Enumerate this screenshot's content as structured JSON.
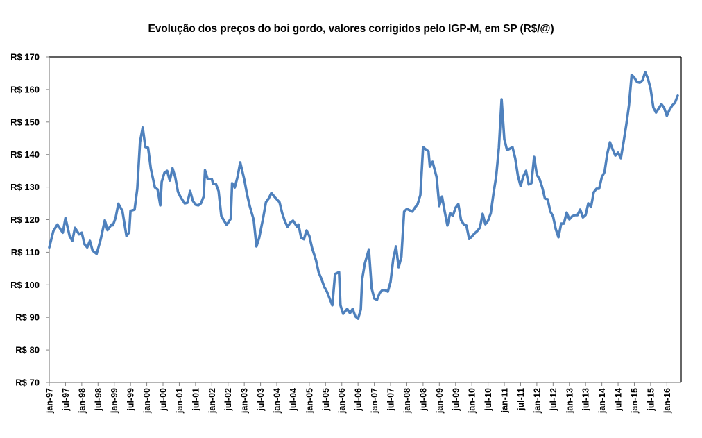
{
  "chart_data": {
    "type": "line",
    "title": "Evolução dos preços do boi gordo, valores corrigidos pelo IGP-M, em SP (R$/@)",
    "xlabel": "",
    "ylabel": "",
    "ylim": [
      70,
      170
    ],
    "grid": false,
    "legend": "none",
    "y_ticks": [
      70,
      80,
      90,
      100,
      110,
      120,
      130,
      140,
      150,
      160,
      170
    ],
    "y_tick_labels": [
      "R$ 70",
      "R$ 80",
      "R$ 90",
      "R$ 100",
      "R$ 110",
      "R$ 120",
      "R$ 130",
      "R$ 140",
      "R$ 150",
      "R$ 160",
      "R$ 170"
    ],
    "x_tick_labels": [
      "jan-97",
      "jul-97",
      "jan-98",
      "jul-98",
      "jan-99",
      "jul-99",
      "jan-00",
      "jul-00",
      "jan-01",
      "jul-01",
      "jan-02",
      "jul-02",
      "jan-03",
      "jul-03",
      "jan-04",
      "jul-04",
      "jan-05",
      "jul-05",
      "jan-06",
      "jul-06",
      "jan-07",
      "jul-07",
      "jan-08",
      "jul-08",
      "jan-09",
      "jul-09",
      "jan-10",
      "jul-10",
      "jan-11",
      "jul-11",
      "jan-12",
      "jul-12",
      "jan-13",
      "jul-13",
      "jan-14",
      "jul-14",
      "jan-15",
      "jul-15",
      "jan-16"
    ],
    "x_start": "jan-97",
    "x_unit": "month",
    "line_color": "#4F81BD",
    "series": [
      {
        "name": "Preço do boi gordo (R$/@)",
        "months_from_jan97": [
          0,
          1.5,
          3,
          5,
          6,
          7.5,
          8.5,
          9.5,
          11,
          12,
          13,
          14,
          15,
          16,
          17.5,
          19,
          20.5,
          21.5,
          23,
          23.5,
          24.5,
          25.5,
          27,
          28.5,
          29.5,
          30,
          31.5,
          32.5,
          33.5,
          34.5,
          35.5,
          36.5,
          37.5,
          39,
          40,
          41,
          41.5,
          42.5,
          43.5,
          44.5,
          45.5,
          46.5,
          47.5,
          48.5,
          50,
          51,
          52,
          53,
          54,
          55,
          56,
          57,
          57.5,
          58.5,
          60,
          60.5,
          61.5,
          62.5,
          63.5,
          64.5,
          65.5,
          67,
          67.5,
          68.5,
          69.5,
          70.5,
          72,
          73,
          74,
          75.5,
          76.5,
          77.5,
          79,
          80,
          81,
          82,
          83.5,
          85,
          86,
          87,
          88,
          89,
          90,
          91.5,
          92,
          93,
          94,
          95,
          96,
          97,
          98.5,
          99.5,
          100.5,
          101.5,
          102.5,
          103.5,
          104.5,
          105.5,
          107,
          107.5,
          108.5,
          110,
          111,
          112,
          113,
          114,
          115,
          115.5,
          116.5,
          118,
          119,
          120,
          121,
          122,
          123,
          124,
          125,
          126,
          127,
          128,
          129,
          130,
          131,
          132,
          133,
          134,
          135,
          136,
          137,
          138,
          139,
          140,
          140.5,
          141.5,
          143,
          144,
          145,
          146,
          147,
          148,
          149,
          150,
          151,
          152,
          153,
          154,
          155,
          156,
          157,
          158,
          159,
          160,
          161,
          162,
          163,
          164,
          165,
          166,
          167,
          168,
          169,
          170,
          171,
          172,
          173,
          174,
          175,
          176,
          177,
          178,
          179,
          180,
          181,
          182,
          183,
          184,
          185,
          186,
          187,
          188,
          189,
          190,
          191,
          192,
          193,
          194,
          195,
          196,
          197,
          198,
          199,
          200,
          201,
          202,
          203,
          204,
          205,
          206,
          207,
          208,
          209,
          210,
          211,
          212,
          213,
          214,
          215,
          216,
          217,
          218,
          219,
          220,
          221,
          222,
          223,
          224,
          225,
          226,
          227,
          228,
          229,
          230,
          231,
          232
        ],
        "values": [
          111.5,
          116.5,
          118.5,
          116,
          120.5,
          115,
          113.5,
          117.5,
          115.5,
          116,
          112.5,
          111.5,
          113.5,
          110.5,
          109.5,
          114,
          119.8,
          116.8,
          118.5,
          118.3,
          120.6,
          124.9,
          122.7,
          115,
          116.1,
          122.7,
          123.1,
          129.5,
          143.8,
          148.3,
          142.3,
          142.1,
          135.7,
          129.9,
          129.3,
          124.4,
          131.6,
          134.4,
          135,
          132,
          135.8,
          133.1,
          128.6,
          126.9,
          125,
          125.2,
          128.8,
          125.8,
          124.6,
          124.4,
          125,
          127.1,
          135.2,
          132.5,
          132.5,
          131,
          131,
          128.8,
          121.2,
          119.7,
          118.4,
          120.3,
          131.2,
          129.9,
          133.1,
          137.6,
          132.3,
          127.8,
          124.2,
          119.9,
          111.8,
          114.4,
          120.7,
          125.4,
          126.5,
          128.2,
          126.7,
          125.4,
          122,
          119.5,
          117.8,
          119.1,
          119.7,
          117.8,
          118.5,
          114.4,
          114,
          116.7,
          115,
          111.4,
          107.5,
          103.7,
          101.8,
          99.4,
          97.9,
          95.8,
          93.7,
          103.3,
          103.9,
          93.7,
          91.1,
          92.6,
          91.3,
          92.6,
          90.3,
          89.6,
          92.4,
          101.6,
          106.5,
          110.9,
          99,
          95.8,
          95.4,
          97.5,
          98.4,
          98.4,
          97.9,
          100.9,
          107.9,
          111.8,
          105.4,
          108.6,
          122.5,
          123.3,
          122.9,
          122.5,
          123.7,
          124.8,
          127.6,
          142.3,
          141.6,
          141,
          136.3,
          137.8,
          133.1,
          124.2,
          127.1,
          122.5,
          118.2,
          122,
          121.2,
          123.7,
          124.8,
          119.9,
          118.6,
          118.2,
          114.1,
          114.8,
          115.8,
          116.5,
          117.6,
          121.8,
          118.6,
          119.7,
          122,
          128,
          133.3,
          142.1,
          157,
          144.8,
          141.4,
          141.8,
          142.3,
          138.9,
          133.5,
          130.3,
          133.3,
          135,
          130.8,
          131.2,
          139.3,
          133.8,
          132.5,
          129.9,
          126.5,
          126.3,
          122.5,
          121,
          117.1,
          114.6,
          118.8,
          118.8,
          122.2,
          120.1,
          121,
          121.4,
          121.4,
          123.1,
          120.7,
          121.4,
          125,
          123.9,
          128.4,
          129.5,
          129.5,
          133.1,
          134.6,
          140.2,
          143.8,
          141.6,
          139.7,
          140.6,
          138.9,
          143.8,
          149.1,
          155.1,
          164.5,
          163.6,
          162.3,
          162.1,
          162.8,
          165.3,
          163.4,
          160.2,
          154.5,
          152.9,
          154.2,
          155.5,
          154.4,
          151.9,
          153.8,
          155.1,
          156,
          158.1
        ]
      }
    ]
  }
}
